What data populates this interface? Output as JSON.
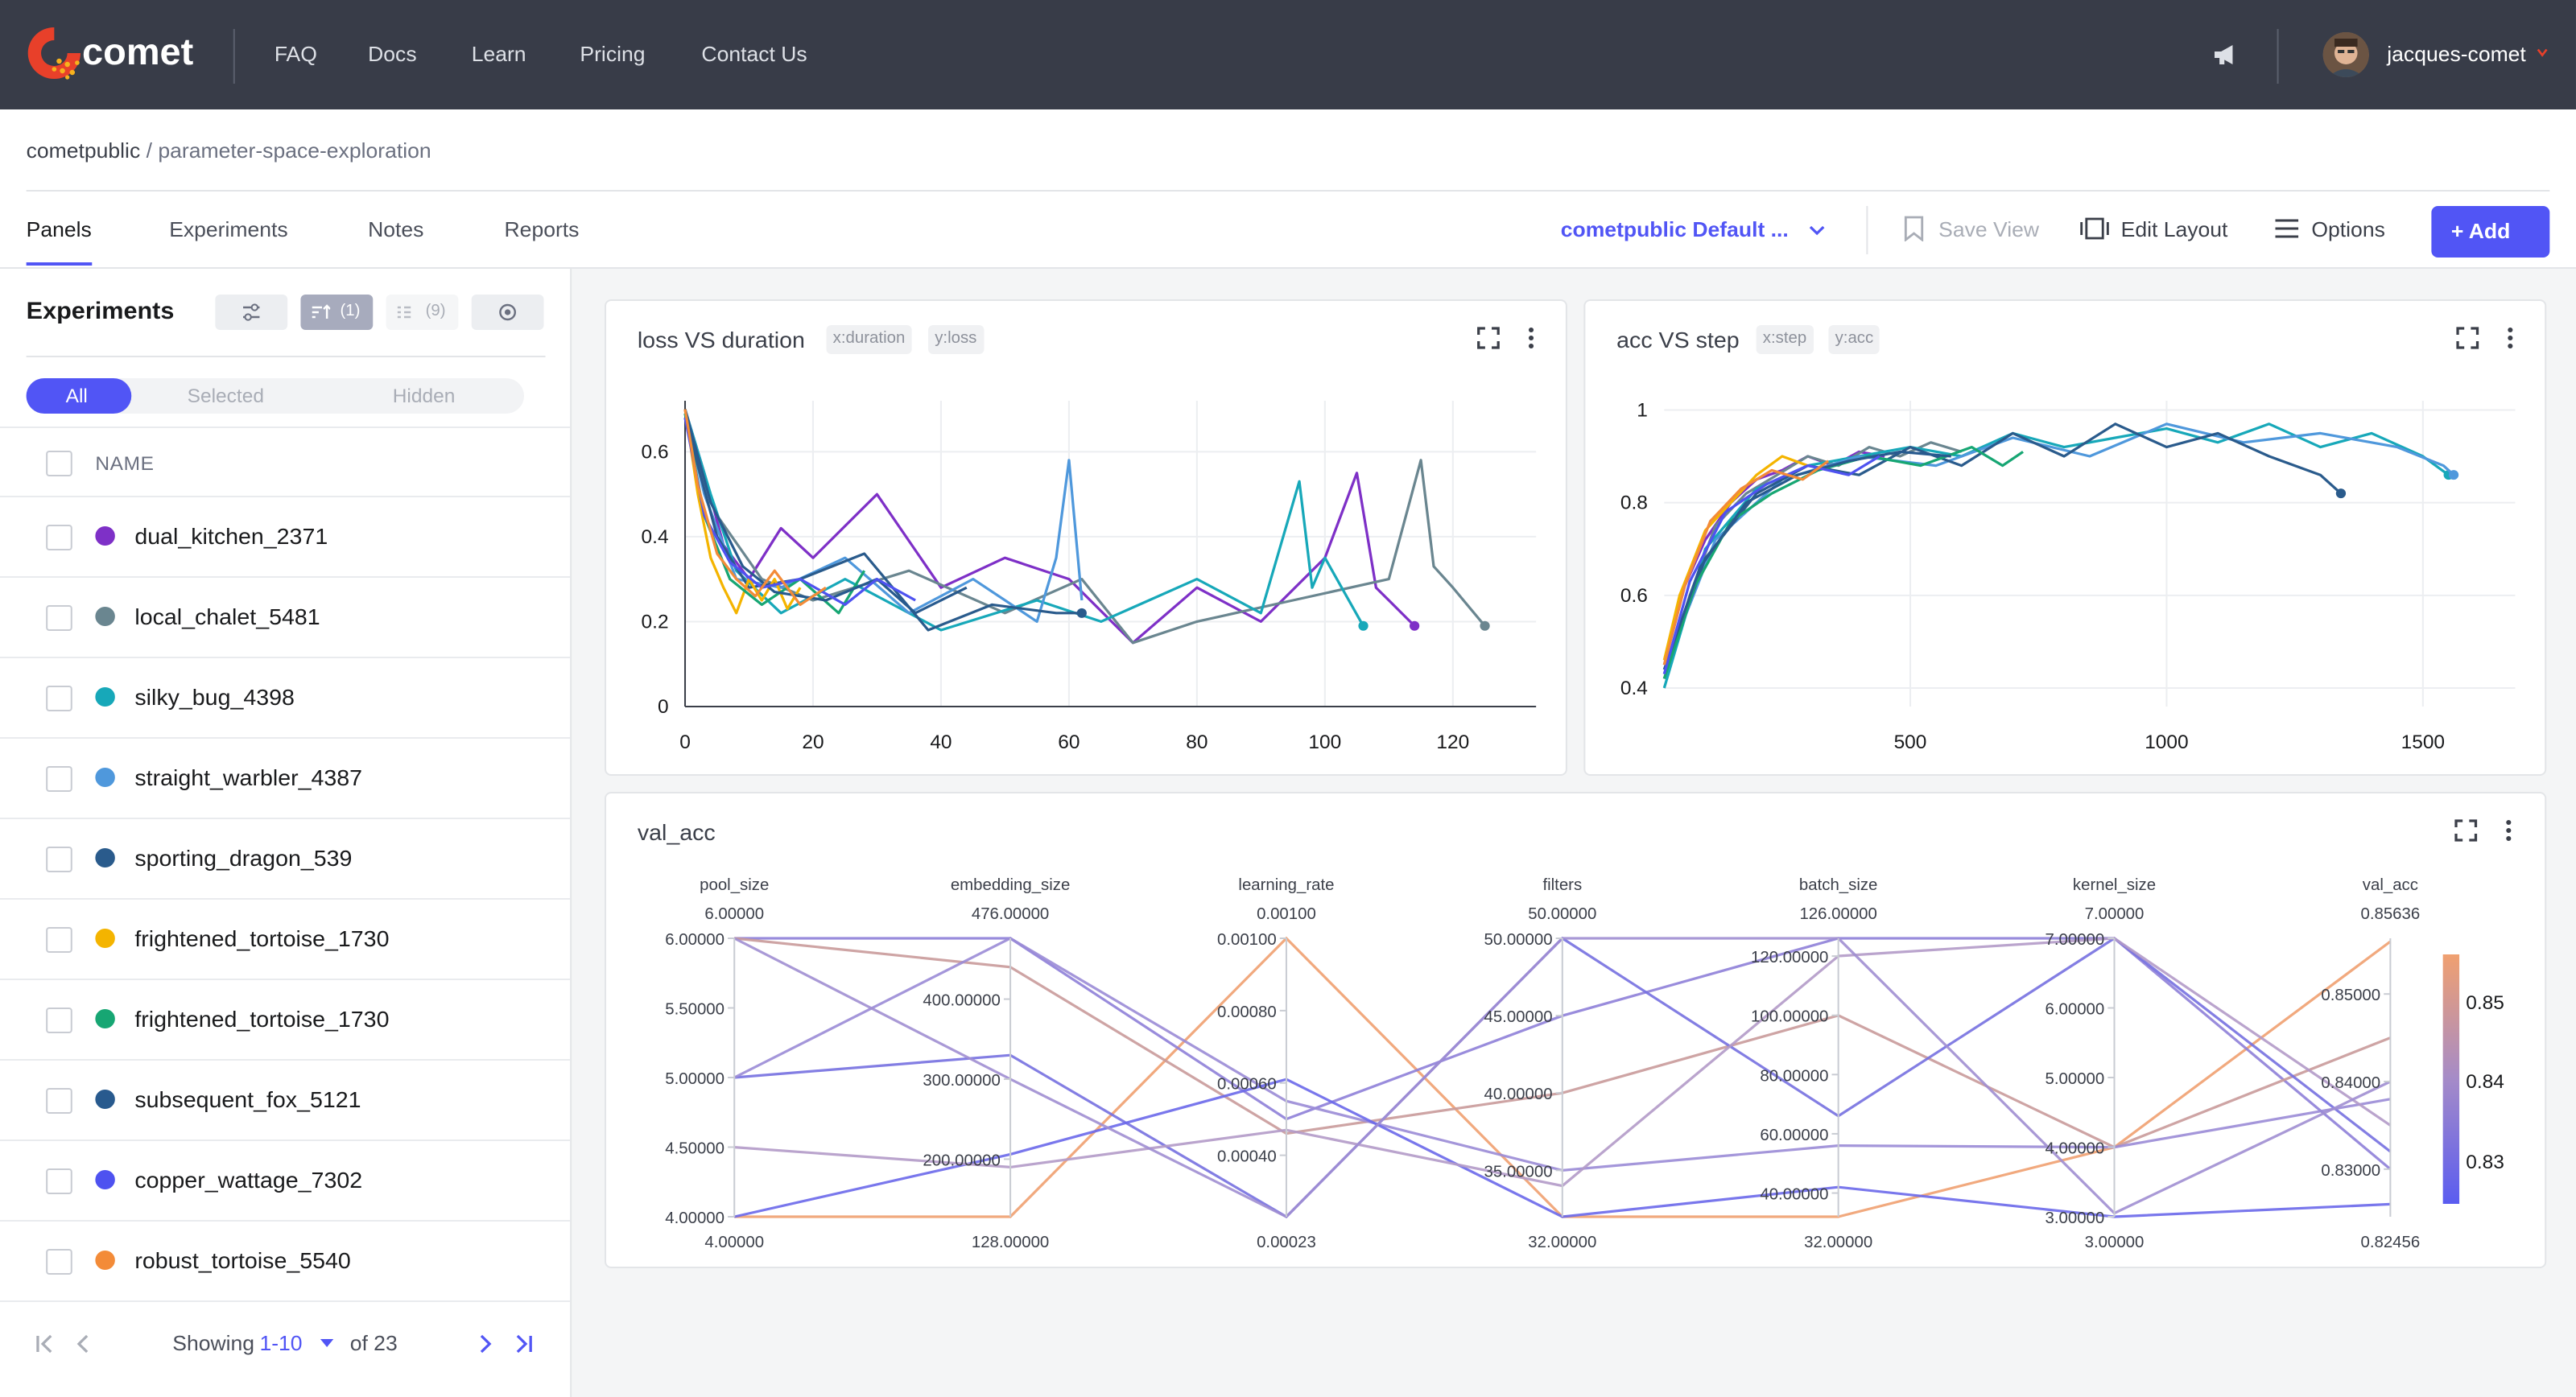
{
  "brand": {
    "name": "comet"
  },
  "nav": {
    "items": [
      "FAQ",
      "Docs",
      "Learn",
      "Pricing",
      "Contact Us"
    ]
  },
  "user": {
    "name": "jacques-comet"
  },
  "breadcrumb": {
    "workspace": "cometpublic",
    "separator": "/",
    "project": "parameter-space-exploration"
  },
  "tabs": [
    "Panels",
    "Experiments",
    "Notes",
    "Reports"
  ],
  "toolbar": {
    "view_name": "cometpublic Default ...",
    "save_view": "Save View",
    "edit_layout": "Edit Layout",
    "options": "Options",
    "add": "+ Add"
  },
  "sidebar": {
    "title": "Experiments",
    "sort_count": "(1)",
    "columns_count": "(9)",
    "filters": {
      "all": "All",
      "selected": "Selected",
      "hidden": "Hidden"
    },
    "column_header": "NAME",
    "experiments": [
      {
        "name": "dual_kitchen_2371",
        "color": "#7e30c7"
      },
      {
        "name": "local_chalet_5481",
        "color": "#6a8690"
      },
      {
        "name": "silky_bug_4398",
        "color": "#17a8b9"
      },
      {
        "name": "straight_warbler_4387",
        "color": "#4f98dc"
      },
      {
        "name": "sporting_dragon_539",
        "color": "#2a5b8c"
      },
      {
        "name": "frightened_tortoise_1730",
        "color": "#f4b400"
      },
      {
        "name": "frightened_tortoise_1730",
        "color": "#17a673"
      },
      {
        "name": "subsequent_fox_5121",
        "color": "#285a8e"
      },
      {
        "name": "copper_wattage_7302",
        "color": "#4e52f0"
      },
      {
        "name": "robust_tortoise_5540",
        "color": "#f38b38"
      }
    ],
    "pager": {
      "showing_label": "Showing",
      "range": "1-10",
      "of_label": "of 23"
    }
  },
  "panels": {
    "loss": {
      "title": "loss VS duration",
      "xtag": "x:duration",
      "ytag": "y:loss"
    },
    "acc": {
      "title": "acc VS step",
      "xtag": "x:step",
      "ytag": "y:acc"
    },
    "val": {
      "title": "val_acc"
    }
  },
  "chart_data": [
    {
      "type": "line",
      "title": "loss VS duration",
      "x_ticks": [
        0,
        20,
        40,
        60,
        80,
        100,
        120
      ],
      "y_ticks": [
        0,
        0.2,
        0.4,
        0.6
      ],
      "xlim": [
        0,
        133
      ],
      "ylim": [
        0,
        0.72
      ],
      "grid": true,
      "series": [
        {
          "color": "#7e30c7",
          "end_marker": true,
          "x": [
            0,
            3,
            6,
            10,
            15,
            20,
            30,
            40,
            50,
            60,
            70,
            80,
            90,
            100,
            105,
            108,
            110,
            114
          ],
          "y": [
            0.7,
            0.55,
            0.38,
            0.3,
            0.42,
            0.35,
            0.5,
            0.28,
            0.35,
            0.3,
            0.15,
            0.28,
            0.2,
            0.35,
            0.55,
            0.28,
            0.25,
            0.19
          ]
        },
        {
          "color": "#6a8690",
          "end_marker": true,
          "x": [
            0,
            5,
            12,
            20,
            35,
            50,
            62,
            70,
            80,
            95,
            110,
            115,
            117,
            120,
            125
          ],
          "y": [
            0.68,
            0.45,
            0.3,
            0.25,
            0.32,
            0.22,
            0.3,
            0.15,
            0.2,
            0.25,
            0.3,
            0.58,
            0.33,
            0.28,
            0.19
          ]
        },
        {
          "color": "#17a8b9",
          "end_marker": true,
          "x": [
            0,
            4,
            8,
            15,
            25,
            40,
            55,
            65,
            80,
            90,
            96,
            98,
            100,
            106
          ],
          "y": [
            0.7,
            0.5,
            0.32,
            0.22,
            0.3,
            0.18,
            0.25,
            0.2,
            0.3,
            0.22,
            0.53,
            0.28,
            0.35,
            0.19
          ]
        },
        {
          "color": "#4f98dc",
          "x": [
            0,
            3,
            8,
            15,
            25,
            35,
            45,
            55,
            58,
            60,
            62
          ],
          "y": [
            0.69,
            0.5,
            0.3,
            0.28,
            0.35,
            0.22,
            0.3,
            0.2,
            0.35,
            0.58,
            0.25
          ]
        },
        {
          "color": "#2a5b8c",
          "end_marker": true,
          "x": [
            0,
            5,
            10,
            18,
            28,
            38,
            48,
            58,
            62
          ],
          "y": [
            0.68,
            0.4,
            0.28,
            0.3,
            0.36,
            0.18,
            0.24,
            0.22,
            0.22
          ]
        },
        {
          "color": "#f4b400",
          "x": [
            0,
            2,
            4,
            6,
            8,
            10,
            12,
            14,
            16,
            18
          ],
          "y": [
            0.7,
            0.5,
            0.35,
            0.28,
            0.22,
            0.3,
            0.25,
            0.3,
            0.23,
            0.28
          ]
        },
        {
          "color": "#17a673",
          "x": [
            0,
            3,
            7,
            12,
            18,
            24,
            28
          ],
          "y": [
            0.69,
            0.45,
            0.3,
            0.24,
            0.3,
            0.22,
            0.32
          ]
        },
        {
          "color": "#285a8e",
          "x": [
            0,
            4,
            9,
            14,
            22,
            30,
            36,
            44
          ],
          "y": [
            0.7,
            0.48,
            0.33,
            0.27,
            0.25,
            0.3,
            0.22,
            0.28
          ]
        },
        {
          "color": "#4e52f0",
          "x": [
            0,
            3,
            7,
            12,
            18,
            25,
            30,
            36
          ],
          "y": [
            0.68,
            0.45,
            0.34,
            0.28,
            0.3,
            0.24,
            0.3,
            0.25
          ]
        },
        {
          "color": "#f38b38",
          "x": [
            0,
            2,
            5,
            8,
            11,
            14,
            18,
            22
          ],
          "y": [
            0.7,
            0.52,
            0.36,
            0.3,
            0.26,
            0.32,
            0.24,
            0.28
          ]
        }
      ]
    },
    {
      "type": "line",
      "title": "acc VS step",
      "x_ticks": [
        500,
        1000,
        1500
      ],
      "y_ticks": [
        0.4,
        0.6,
        0.8,
        1
      ],
      "xlim": [
        20,
        1680
      ],
      "ylim": [
        0.36,
        1.02
      ],
      "grid": true,
      "series": [
        {
          "color": "#7e30c7",
          "x": [
            20,
            60,
            100,
            150,
            200,
            250,
            300,
            350,
            400,
            450
          ],
          "y": [
            0.45,
            0.62,
            0.72,
            0.8,
            0.85,
            0.87,
            0.9,
            0.88,
            0.91,
            0.9
          ]
        },
        {
          "color": "#6a8690",
          "x": [
            20,
            70,
            120,
            180,
            240,
            300,
            360,
            420,
            480,
            540,
            600
          ],
          "y": [
            0.42,
            0.6,
            0.75,
            0.82,
            0.86,
            0.9,
            0.88,
            0.92,
            0.9,
            0.93,
            0.91
          ]
        },
        {
          "color": "#17a8b9",
          "end_marker": true,
          "x": [
            20,
            100,
            200,
            300,
            400,
            500,
            600,
            700,
            800,
            900,
            1000,
            1100,
            1200,
            1300,
            1400,
            1500,
            1550
          ],
          "y": [
            0.4,
            0.7,
            0.83,
            0.88,
            0.9,
            0.92,
            0.9,
            0.95,
            0.92,
            0.94,
            0.96,
            0.93,
            0.97,
            0.92,
            0.95,
            0.9,
            0.86
          ]
        },
        {
          "color": "#4f98dc",
          "end_marker": true,
          "x": [
            20,
            120,
            250,
            400,
            550,
            700,
            850,
            1000,
            1150,
            1300,
            1450,
            1540,
            1560
          ],
          "y": [
            0.44,
            0.72,
            0.85,
            0.9,
            0.88,
            0.94,
            0.9,
            0.97,
            0.93,
            0.95,
            0.92,
            0.88,
            0.86
          ]
        },
        {
          "color": "#2a5b8c",
          "end_marker": true,
          "x": [
            20,
            100,
            200,
            300,
            400,
            500,
            600,
            700,
            800,
            900,
            1000,
            1100,
            1200,
            1300,
            1340
          ],
          "y": [
            0.43,
            0.68,
            0.82,
            0.88,
            0.86,
            0.92,
            0.88,
            0.95,
            0.9,
            0.97,
            0.92,
            0.95,
            0.9,
            0.86,
            0.82
          ]
        },
        {
          "color": "#f4b400",
          "x": [
            20,
            50,
            100,
            150,
            200,
            250,
            300
          ],
          "y": [
            0.46,
            0.6,
            0.74,
            0.8,
            0.86,
            0.9,
            0.88
          ]
        },
        {
          "color": "#17a673",
          "x": [
            20,
            80,
            150,
            230,
            320,
            420,
            520,
            620,
            680,
            720
          ],
          "y": [
            0.42,
            0.62,
            0.76,
            0.82,
            0.87,
            0.9,
            0.88,
            0.92,
            0.88,
            0.91
          ]
        },
        {
          "color": "#285a8e",
          "x": [
            20,
            90,
            180,
            280,
            380,
            480,
            580
          ],
          "y": [
            0.44,
            0.66,
            0.8,
            0.86,
            0.89,
            0.91,
            0.9
          ]
        },
        {
          "color": "#4e52f0",
          "x": [
            20,
            70,
            140,
            220,
            300,
            380,
            440
          ],
          "y": [
            0.43,
            0.63,
            0.78,
            0.84,
            0.88,
            0.86,
            0.9
          ]
        },
        {
          "color": "#f38b38",
          "x": [
            20,
            60,
            110,
            170,
            230,
            290,
            340
          ],
          "y": [
            0.45,
            0.62,
            0.76,
            0.83,
            0.87,
            0.85,
            0.89
          ]
        }
      ]
    },
    {
      "type": "parallel_coordinates",
      "title": "val_acc",
      "axes": [
        {
          "name": "pool_size",
          "top": "6.00000",
          "bottom": "4.00000",
          "ticks": [
            "6.00000",
            "5.50000",
            "5.00000",
            "4.50000",
            "4.00000"
          ]
        },
        {
          "name": "embedding_size",
          "top": "476.00000",
          "bottom": "128.00000",
          "ticks": [
            "400.00000",
            "300.00000",
            "200.00000"
          ]
        },
        {
          "name": "learning_rate",
          "top": "0.00100",
          "bottom": "0.00023",
          "ticks": [
            "0.00100",
            "0.00080",
            "0.00060",
            "0.00040"
          ]
        },
        {
          "name": "filters",
          "top": "50.00000",
          "bottom": "32.00000",
          "ticks": [
            "50.00000",
            "45.00000",
            "40.00000",
            "35.00000"
          ]
        },
        {
          "name": "batch_size",
          "top": "126.00000",
          "bottom": "32.00000",
          "ticks": [
            "120.00000",
            "100.00000",
            "80.00000",
            "60.00000",
            "40.00000"
          ]
        },
        {
          "name": "kernel_size",
          "top": "7.00000",
          "bottom": "3.00000",
          "ticks": [
            "7.00000",
            "6.00000",
            "5.00000",
            "4.00000",
            "3.00000"
          ]
        },
        {
          "name": "val_acc",
          "top": "0.85636",
          "bottom": "0.82456",
          "ticks": [
            "0.85000",
            "0.84000",
            "0.83000"
          ]
        }
      ],
      "colorbar": {
        "ticks": [
          "0.85",
          "0.84",
          "0.83"
        ],
        "low_color": "#5a5cf0",
        "high_color": "#f0a070"
      },
      "lines": [
        {
          "color": "#f0a070",
          "values": [
            4,
            128,
            0.001,
            32,
            32,
            4,
            0.856
          ]
        },
        {
          "color": "#8e7fd8",
          "values": [
            6,
            476,
            0.0005,
            45,
            126,
            7,
            0.83
          ]
        },
        {
          "color": "#c99a9a",
          "values": [
            6,
            440,
            0.00046,
            40,
            100,
            4,
            0.845
          ]
        },
        {
          "color": "#7670e0",
          "values": [
            5,
            330,
            0.00023,
            50,
            66,
            7,
            0.832
          ]
        },
        {
          "color": "#9a8bd6",
          "values": [
            5,
            476,
            0.00055,
            35,
            56,
            4,
            0.838
          ]
        },
        {
          "color": "#6a68ea",
          "values": [
            4,
            206,
            0.00061,
            32,
            42,
            3,
            0.826
          ]
        },
        {
          "color": "#b39ac8",
          "values": [
            4.5,
            190,
            0.00047,
            34,
            120,
            7,
            0.835
          ]
        },
        {
          "color": "#a08ed2",
          "values": [
            6,
            300,
            0.00023,
            50,
            126,
            3.05,
            0.84
          ]
        }
      ]
    }
  ]
}
